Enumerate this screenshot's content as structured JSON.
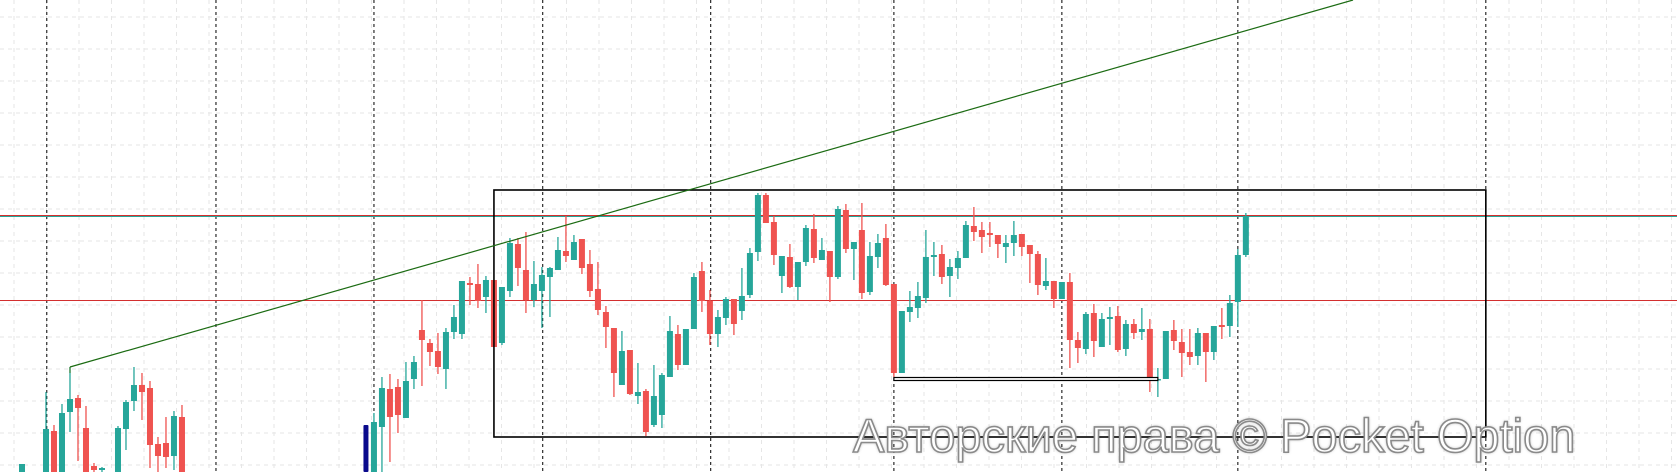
{
  "watermark": "Авторские права © Pocket Option",
  "colors": {
    "bull": "#26a69a",
    "bear": "#ef5350",
    "trendline": "#1b6b12",
    "resistance_red": "#d32f2f",
    "resistance_teal": "#26a69a",
    "support_red": "#d32f2f",
    "rectangle": "#000000",
    "support_double": "#000000",
    "marker": "#0a0a8c",
    "grid": "#e6e6e6"
  },
  "chart_data": {
    "type": "candlestick",
    "title": "",
    "xlabel": "",
    "ylabel": "",
    "ylim": [
      28,
      500
    ],
    "xlim": [
      -2.75,
      206.9
    ],
    "grid": true,
    "candle_format": [
      "index",
      "open",
      "high",
      "low",
      "close"
    ],
    "candles": [
      [
        0,
        28,
        36,
        28,
        36
      ],
      [
        3,
        28,
        108,
        28,
        71
      ],
      [
        4,
        69,
        75,
        28,
        28
      ],
      [
        5,
        28,
        96,
        28,
        87
      ],
      [
        6,
        88,
        133,
        68,
        101
      ],
      [
        7,
        102,
        105,
        39,
        92
      ],
      [
        8,
        72,
        94,
        28,
        28
      ],
      [
        9,
        34,
        37,
        28,
        30
      ],
      [
        10,
        30,
        33,
        28,
        32
      ],
      [
        12,
        28,
        74,
        28,
        72
      ],
      [
        13,
        71,
        100,
        50,
        98
      ],
      [
        14,
        99,
        133,
        89,
        115
      ],
      [
        15,
        115,
        127,
        80,
        108
      ],
      [
        16,
        112,
        119,
        32,
        55
      ],
      [
        17,
        56,
        63,
        28,
        44
      ],
      [
        18,
        57,
        83,
        32,
        43
      ],
      [
        19,
        44,
        89,
        30,
        84
      ],
      [
        20,
        83,
        95,
        28,
        28
      ],
      [
        44,
        28,
        87,
        28,
        78
      ],
      [
        45,
        73,
        123,
        28,
        112
      ],
      [
        46,
        111,
        126,
        38,
        83
      ],
      [
        47,
        113,
        121,
        67,
        85
      ],
      [
        48,
        82,
        138,
        82,
        119
      ],
      [
        49,
        121,
        144,
        111,
        138
      ],
      [
        50,
        170,
        200,
        114,
        160
      ],
      [
        51,
        157,
        161,
        134,
        148
      ],
      [
        52,
        149,
        167,
        126,
        133
      ],
      [
        53,
        131,
        172,
        111,
        168
      ],
      [
        54,
        168,
        195,
        161,
        183
      ],
      [
        55,
        166,
        219,
        161,
        219
      ],
      [
        56,
        217,
        223,
        195,
        215
      ],
      [
        57,
        216,
        236,
        192,
        199
      ],
      [
        58,
        203,
        224,
        187,
        220
      ],
      [
        59,
        220,
        220,
        153,
        153
      ],
      [
        60,
        157,
        213,
        155,
        213
      ],
      [
        61,
        209,
        262,
        203,
        257
      ],
      [
        62,
        256,
        262,
        214,
        232
      ],
      [
        63,
        230,
        268,
        187,
        200
      ],
      [
        64,
        200,
        239,
        193,
        216
      ],
      [
        65,
        209,
        233,
        172,
        225
      ],
      [
        66,
        223,
        233,
        183,
        232
      ],
      [
        67,
        230,
        263,
        230,
        250
      ],
      [
        68,
        249,
        284,
        238,
        244
      ],
      [
        69,
        240,
        265,
        240,
        258
      ],
      [
        70,
        261,
        261,
        226,
        232
      ],
      [
        71,
        236,
        250,
        203,
        209
      ],
      [
        72,
        211,
        238,
        185,
        190
      ],
      [
        73,
        188,
        194,
        152,
        173
      ],
      [
        74,
        172,
        172,
        103,
        127
      ],
      [
        75,
        115,
        169,
        115,
        149
      ],
      [
        76,
        150,
        150,
        105,
        106
      ],
      [
        77,
        104,
        137,
        96,
        108
      ],
      [
        78,
        109,
        111,
        64,
        68
      ],
      [
        79,
        75,
        135,
        73,
        104
      ],
      [
        80,
        85,
        127,
        72,
        125
      ],
      [
        81,
        123,
        184,
        123,
        169
      ],
      [
        82,
        166,
        175,
        130,
        135
      ],
      [
        83,
        135,
        171,
        135,
        171
      ],
      [
        84,
        171,
        227,
        171,
        223
      ],
      [
        85,
        229,
        238,
        188,
        199
      ],
      [
        86,
        199,
        210,
        155,
        166
      ],
      [
        87,
        166,
        190,
        153,
        183
      ],
      [
        88,
        182,
        203,
        175,
        201
      ],
      [
        89,
        201,
        201,
        165,
        176
      ],
      [
        90,
        189,
        232,
        180,
        204
      ],
      [
        91,
        205,
        252,
        202,
        247
      ],
      [
        92,
        248,
        307,
        239,
        305
      ],
      [
        93,
        305,
        307,
        277,
        277
      ],
      [
        94,
        278,
        284,
        235,
        245
      ],
      [
        95,
        224,
        244,
        207,
        244
      ],
      [
        96,
        243,
        256,
        212,
        213
      ],
      [
        97,
        213,
        238,
        200,
        238
      ],
      [
        98,
        238,
        275,
        234,
        272
      ],
      [
        99,
        271,
        286,
        237,
        242
      ],
      [
        100,
        240,
        262,
        240,
        250
      ],
      [
        101,
        249,
        249,
        198,
        223
      ],
      [
        102,
        223,
        294,
        221,
        291
      ],
      [
        103,
        290,
        296,
        247,
        251
      ],
      [
        104,
        251,
        258,
        220,
        258
      ],
      [
        105,
        270,
        297,
        201,
        207
      ],
      [
        106,
        208,
        258,
        205,
        244
      ],
      [
        107,
        243,
        266,
        232,
        257
      ],
      [
        108,
        262,
        276,
        214,
        215
      ],
      [
        109,
        216,
        216,
        123,
        127
      ],
      [
        110,
        127,
        189,
        127,
        189
      ],
      [
        111,
        188,
        209,
        178,
        193
      ],
      [
        112,
        192,
        218,
        182,
        204
      ],
      [
        113,
        202,
        270,
        197,
        243
      ],
      [
        114,
        243,
        258,
        224,
        245
      ],
      [
        115,
        246,
        255,
        216,
        223
      ],
      [
        116,
        224,
        241,
        203,
        233
      ],
      [
        117,
        232,
        249,
        221,
        242
      ],
      [
        118,
        242,
        279,
        242,
        275
      ],
      [
        119,
        274,
        293,
        259,
        268
      ],
      [
        120,
        270,
        278,
        247,
        263
      ],
      [
        121,
        267,
        278,
        253,
        265
      ],
      [
        122,
        265,
        265,
        242,
        256
      ],
      [
        123,
        253,
        265,
        237,
        257
      ],
      [
        124,
        257,
        279,
        244,
        265
      ],
      [
        125,
        266,
        266,
        244,
        253
      ],
      [
        126,
        255,
        255,
        217,
        246
      ],
      [
        127,
        246,
        249,
        205,
        215
      ],
      [
        128,
        214,
        242,
        210,
        219
      ],
      [
        129,
        219,
        219,
        192,
        201
      ],
      [
        130,
        201,
        218,
        201,
        218
      ],
      [
        131,
        218,
        227,
        132,
        160
      ],
      [
        132,
        160,
        168,
        137,
        152
      ],
      [
        133,
        151,
        188,
        146,
        186
      ],
      [
        134,
        187,
        196,
        143,
        159
      ],
      [
        135,
        153,
        187,
        153,
        181
      ],
      [
        136,
        181,
        193,
        155,
        183
      ],
      [
        137,
        184,
        194,
        148,
        150
      ],
      [
        138,
        151,
        180,
        144,
        176
      ],
      [
        139,
        176,
        181,
        161,
        167
      ],
      [
        140,
        168,
        192,
        160,
        171
      ],
      [
        141,
        171,
        181,
        108,
        121
      ],
      [
        142,
        120,
        132,
        103,
        121
      ],
      [
        143,
        121,
        169,
        121,
        169
      ],
      [
        144,
        170,
        180,
        150,
        159
      ],
      [
        145,
        158,
        171,
        123,
        147
      ],
      [
        146,
        148,
        171,
        135,
        143
      ],
      [
        147,
        144,
        172,
        135,
        167
      ],
      [
        148,
        167,
        167,
        118,
        148
      ],
      [
        149,
        148,
        174,
        140,
        174
      ],
      [
        150,
        175,
        192,
        161,
        173
      ],
      [
        151,
        174,
        205,
        163,
        197
      ],
      [
        152,
        198,
        251,
        173,
        245
      ],
      [
        153,
        245,
        287,
        243,
        284
      ]
    ],
    "marker_bar": {
      "index": 43,
      "from": 28,
      "to": 75
    },
    "horizontal_lines": [
      {
        "price": 285,
        "color": "resistance_red"
      },
      {
        "price": 284,
        "color": "resistance_teal"
      },
      {
        "price": 200,
        "color": "support_red"
      }
    ],
    "trendline": {
      "from": [
        6,
        133
      ],
      "to": [
        166.4,
        500
      ],
      "arrow": true
    },
    "rectangle": {
      "from_index": 59,
      "to_index": 183,
      "top": 310,
      "bottom": 63
    },
    "support_double_line": {
      "from_index": 109,
      "to_index": 142,
      "price": 121
    },
    "vertical_dashed_lines": [
      3.1,
      24.25,
      44,
      65.1,
      86.1,
      109,
      130,
      152,
      183
    ]
  }
}
